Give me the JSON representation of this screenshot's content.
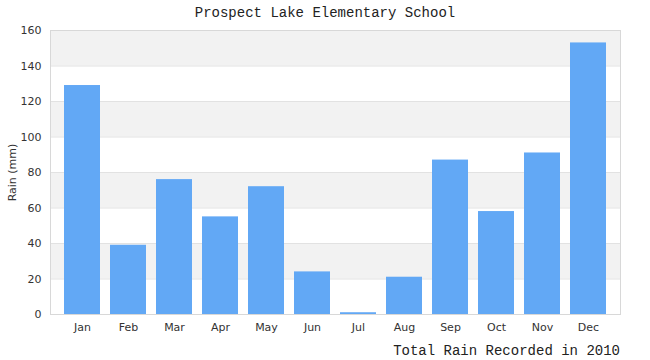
{
  "chart_data": {
    "type": "bar",
    "title": "Prospect Lake Elementary School",
    "x_label": "Total Rain Recorded in 2010",
    "y_label": "Rain (mm)",
    "categories": [
      "Jan",
      "Feb",
      "Mar",
      "Apr",
      "May",
      "Jun",
      "Jul",
      "Aug",
      "Sep",
      "Oct",
      "Nov",
      "Dec"
    ],
    "values": [
      129,
      39,
      76,
      55,
      72,
      24,
      1,
      21,
      87,
      58,
      91,
      153
    ],
    "color": "#62a8f5",
    "ylim": [
      0,
      160
    ],
    "yticks": [
      0,
      20,
      40,
      60,
      80,
      100,
      120,
      140,
      160
    ],
    "grid": true
  }
}
